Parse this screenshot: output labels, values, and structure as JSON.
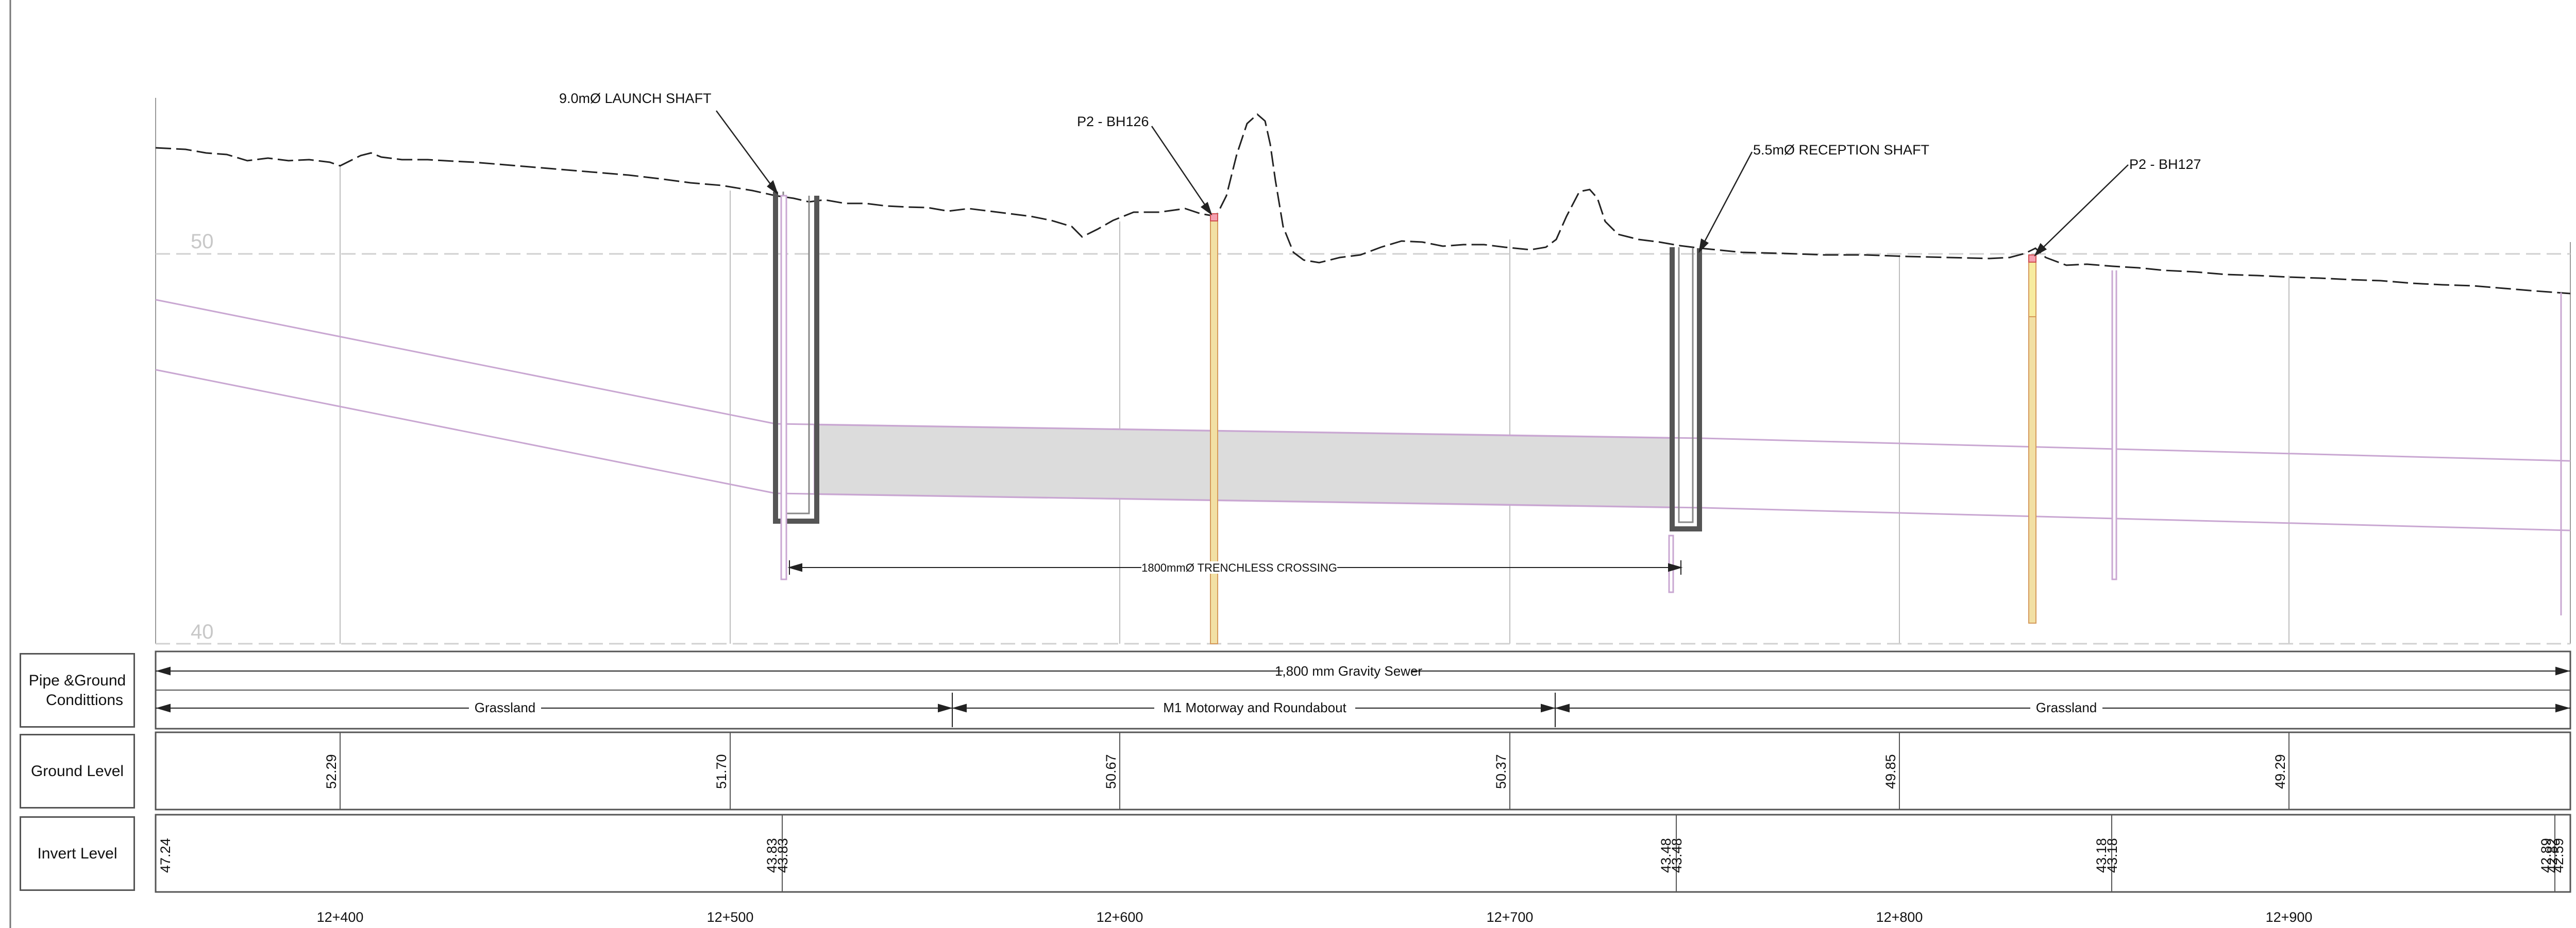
{
  "colors": {
    "ground": "#222222",
    "grid": "#b4b4b4",
    "dashed_level": "#cfcfcf",
    "pipe": "#c9a7d2",
    "shaft": "#555555",
    "crossing_fill": "#d9d9d9",
    "borehole_fill": "#f2e0a4",
    "text": "#111111"
  },
  "profile": {
    "level_labels": [
      "50",
      "40"
    ],
    "annotations": {
      "launch_shaft": "9.0mØ LAUNCH SHAFT",
      "bh126": "P2 - BH126",
      "reception_shaft": "5.5mØ RECEPTION SHAFT",
      "bh127": "P2 - BH127",
      "crossing": "1800mmØ TRENCHLESS CROSSING"
    }
  },
  "table": {
    "row_labels": {
      "pipe_ground_line1": "Pipe &Ground",
      "pipe_ground_line2": "Condittions",
      "ground_level": "Ground Level",
      "invert_level": "Invert Level"
    },
    "pipe_description": "1,800 mm Gravity Sewer",
    "conditions": [
      "Grassland",
      "M1 Motorway and Roundabout",
      "Grassland"
    ],
    "ground_levels": [
      "52.29",
      "51.70",
      "50.67",
      "50.37",
      "49.85",
      "49.29"
    ],
    "invert_levels": [
      "47.24",
      "43.83",
      "43.83",
      "43.48",
      "43.48",
      "43.18",
      "43.18",
      "42.89",
      "42.82",
      "42.59"
    ]
  },
  "chainages": [
    "12+400",
    "12+500",
    "12+600",
    "12+700",
    "12+800",
    "12+900"
  ]
}
